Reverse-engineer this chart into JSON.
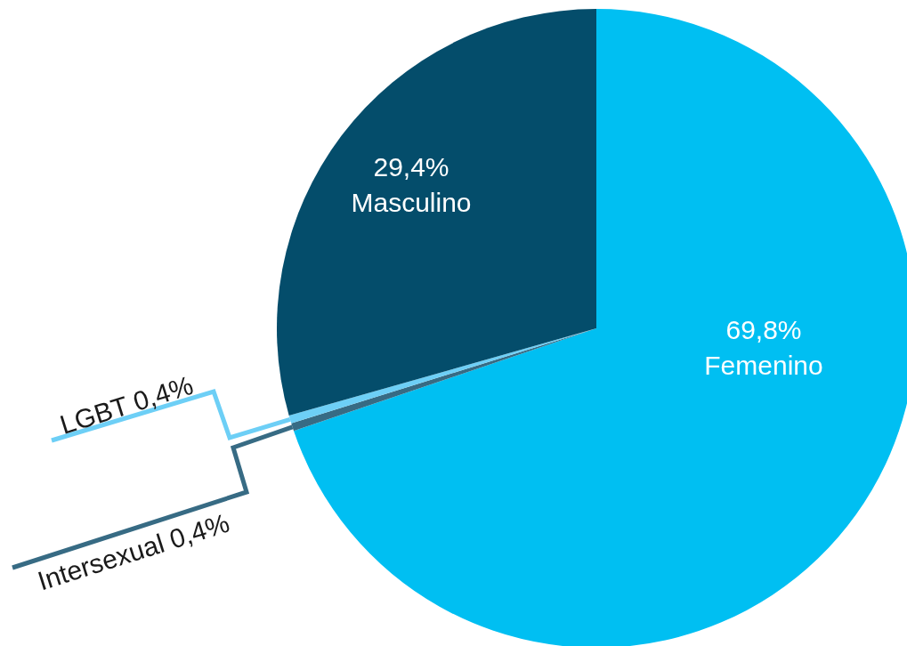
{
  "chart_data": {
    "type": "pie",
    "categories": [
      "Femenino",
      "Intersexual",
      "LGBT",
      "Masculino"
    ],
    "values": [
      69.8,
      0.4,
      0.4,
      29.4
    ],
    "colors": [
      "#00bff2",
      "#376b84",
      "#6dcff6",
      "#044d6b"
    ],
    "value_labels": [
      "69,8%",
      "0,4%",
      "0,4%",
      "29,4%"
    ]
  }
}
